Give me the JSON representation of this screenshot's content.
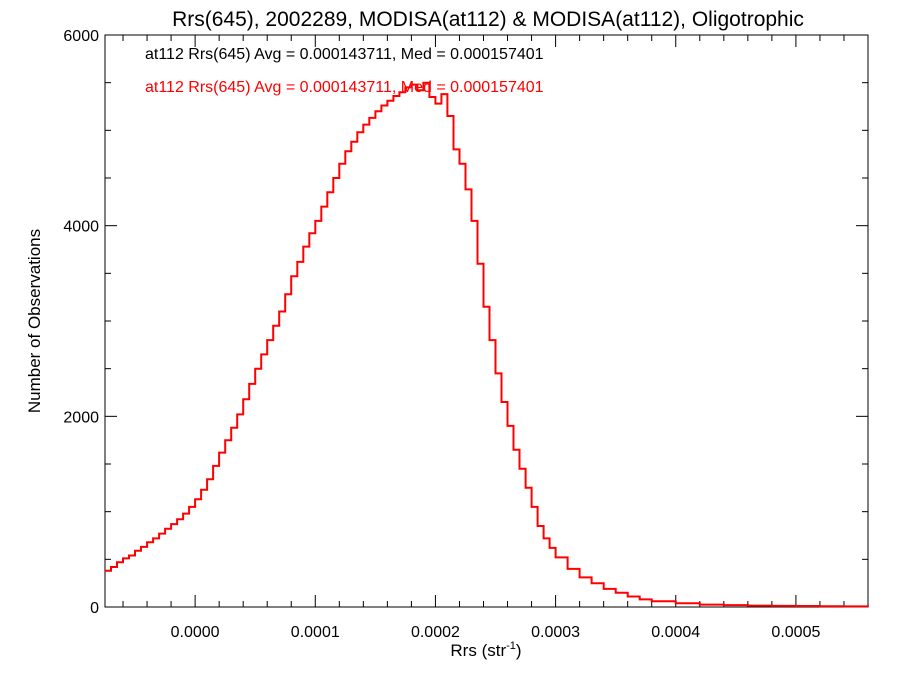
{
  "chart_data": {
    "type": "line",
    "title": "Rrs(645), 2002289, MODISA(at112) & MODISA(at112), Oligotrophic",
    "xlabel": {
      "base": "Rrs (str",
      "sup": "-1",
      "end": ")"
    },
    "ylabel": "Number of Observations",
    "xlim": [
      -7.5e-05,
      0.00056
    ],
    "ylim": [
      0,
      6000
    ],
    "x_ticks": [
      {
        "value": 0.0,
        "label": "0.0000"
      },
      {
        "value": 0.0001,
        "label": "0.0001"
      },
      {
        "value": 0.0002,
        "label": "0.0002"
      },
      {
        "value": 0.0003,
        "label": "0.0003"
      },
      {
        "value": 0.0004,
        "label": "0.0004"
      },
      {
        "value": 0.0005,
        "label": "0.0005"
      }
    ],
    "y_ticks": [
      {
        "value": 0,
        "label": "0"
      },
      {
        "value": 2000,
        "label": "2000"
      },
      {
        "value": 4000,
        "label": "4000"
      },
      {
        "value": 6000,
        "label": "6000"
      }
    ],
    "legend": [
      {
        "text": "at112 Rrs(645) Avg = 0.000143711, Med = 0.000157401",
        "color": "#000000"
      },
      {
        "text": "at112 Rrs(645) Avg = 0.000143711, Med = 0.000157401",
        "color": "#ff0000"
      }
    ],
    "series": [
      {
        "name": "at112 Rrs(645)",
        "color": "#ff0000",
        "x": [
          -7.5e-05,
          -7e-05,
          -6.5e-05,
          -6e-05,
          -5.5e-05,
          -5e-05,
          -4.5e-05,
          -4e-05,
          -3.5e-05,
          -3e-05,
          -2.5e-05,
          -2e-05,
          -1.5e-05,
          -1e-05,
          -5e-06,
          0.0,
          5e-06,
          1e-05,
          1.5e-05,
          2e-05,
          2.5e-05,
          3e-05,
          3.5e-05,
          4e-05,
          4.5e-05,
          5e-05,
          5.5e-05,
          6e-05,
          6.5e-05,
          7e-05,
          7.5e-05,
          8e-05,
          8.5e-05,
          9e-05,
          9.5e-05,
          0.0001,
          0.000105,
          0.00011,
          0.000115,
          0.00012,
          0.000125,
          0.00013,
          0.000135,
          0.00014,
          0.000145,
          0.00015,
          0.000155,
          0.00016,
          0.000165,
          0.00017,
          0.000175,
          0.00018,
          0.000185,
          0.00019,
          0.000195,
          0.0002,
          0.000205,
          0.00021,
          0.000215,
          0.00022,
          0.000225,
          0.00023,
          0.000235,
          0.00024,
          0.000245,
          0.00025,
          0.000255,
          0.00026,
          0.000265,
          0.00027,
          0.000275,
          0.00028,
          0.000285,
          0.00029,
          0.000295,
          0.0003,
          0.00031,
          0.00032,
          0.00033,
          0.00034,
          0.00035,
          0.00036,
          0.00037,
          0.00038,
          0.0004,
          0.00042,
          0.00044,
          0.00046,
          0.00048,
          0.0005,
          0.00052,
          0.00054,
          0.00056
        ],
        "values": [
          380,
          420,
          470,
          510,
          540,
          590,
          630,
          680,
          720,
          770,
          820,
          870,
          920,
          980,
          1050,
          1130,
          1230,
          1340,
          1480,
          1620,
          1750,
          1880,
          2020,
          2180,
          2340,
          2500,
          2650,
          2800,
          2950,
          3100,
          3280,
          3470,
          3620,
          3780,
          3920,
          4050,
          4200,
          4350,
          4500,
          4650,
          4780,
          4880,
          4980,
          5060,
          5130,
          5200,
          5260,
          5310,
          5360,
          5400,
          5450,
          5480,
          5420,
          5500,
          5350,
          5280,
          5380,
          5150,
          4800,
          4650,
          4380,
          4050,
          3600,
          3150,
          2800,
          2450,
          2150,
          1900,
          1650,
          1450,
          1250,
          1050,
          850,
          720,
          620,
          520,
          400,
          310,
          250,
          190,
          150,
          110,
          80,
          60,
          40,
          25,
          20,
          15,
          12,
          10,
          8,
          6,
          5
        ]
      }
    ]
  }
}
